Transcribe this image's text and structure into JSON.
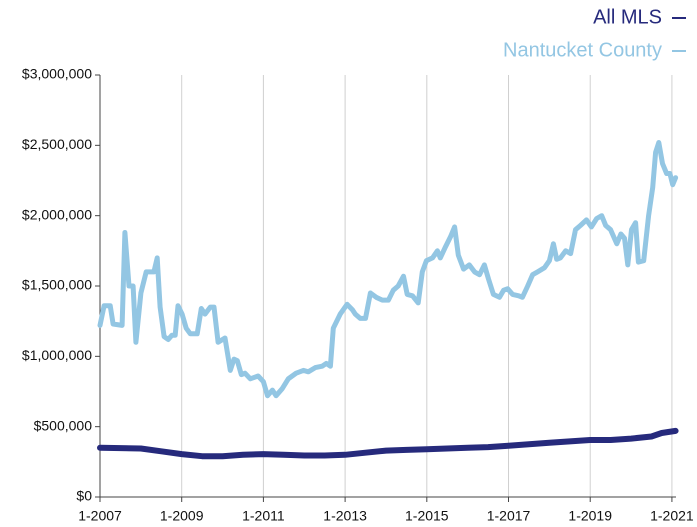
{
  "chart_data": {
    "type": "line",
    "legend": "top-right",
    "grid": "x",
    "xlim": [
      2007,
      2021.1
    ],
    "xticks": [
      {
        "value": 2007,
        "label": "1-2007"
      },
      {
        "value": 2009,
        "label": "1-2009"
      },
      {
        "value": 2011,
        "label": "1-2011"
      },
      {
        "value": 2013,
        "label": "1-2013"
      },
      {
        "value": 2015,
        "label": "1-2015"
      },
      {
        "value": 2017,
        "label": "1-2017"
      },
      {
        "value": 2019,
        "label": "1-2019"
      },
      {
        "value": 2021,
        "label": "1-2021"
      }
    ],
    "ylim": [
      0,
      3000000
    ],
    "yticks": [
      {
        "value": 0,
        "label": "$0"
      },
      {
        "value": 500000,
        "label": "$500,000"
      },
      {
        "value": 1000000,
        "label": "$1,000,000"
      },
      {
        "value": 1500000,
        "label": "$1,500,000"
      },
      {
        "value": 2000000,
        "label": "$2,000,000"
      },
      {
        "value": 2500000,
        "label": "$2,500,000"
      },
      {
        "value": 3000000,
        "label": "$3,000,000"
      }
    ],
    "series": [
      {
        "name": "All MLS",
        "color": "#262a7c",
        "x": [
          2007,
          2008,
          2008.5,
          2009,
          2009.5,
          2010,
          2010.5,
          2011,
          2011.5,
          2012,
          2012.5,
          2013,
          2013.5,
          2014,
          2014.5,
          2015,
          2015.5,
          2016,
          2016.5,
          2017,
          2017.5,
          2018,
          2018.5,
          2019,
          2019.5,
          2020,
          2020.5,
          2020.75,
          2021.09
        ],
        "values": [
          350000,
          345000,
          325000,
          305000,
          290000,
          290000,
          300000,
          305000,
          300000,
          295000,
          295000,
          300000,
          315000,
          330000,
          335000,
          340000,
          345000,
          350000,
          355000,
          365000,
          375000,
          385000,
          395000,
          405000,
          405000,
          415000,
          430000,
          455000,
          470000
        ]
      },
      {
        "name": "Nantucket County",
        "color": "#93c6e3",
        "x": [
          2007.0,
          2007.1,
          2007.25,
          2007.32,
          2007.54,
          2007.61,
          2007.71,
          2007.81,
          2007.88,
          2008.0,
          2008.13,
          2008.32,
          2008.4,
          2008.47,
          2008.57,
          2008.67,
          2008.76,
          2008.84,
          2008.91,
          2009.01,
          2009.11,
          2009.21,
          2009.38,
          2009.48,
          2009.57,
          2009.7,
          2009.79,
          2009.89,
          2010.06,
          2010.19,
          2010.28,
          2010.36,
          2010.46,
          2010.55,
          2010.68,
          2010.87,
          2011.0,
          2011.1,
          2011.22,
          2011.31,
          2011.46,
          2011.61,
          2011.8,
          2011.98,
          2012.1,
          2012.27,
          2012.44,
          2012.54,
          2012.64,
          2012.71,
          2012.88,
          2013.05,
          2013.18,
          2013.25,
          2013.37,
          2013.5,
          2013.62,
          2013.76,
          2013.91,
          2014.06,
          2014.18,
          2014.3,
          2014.43,
          2014.52,
          2014.65,
          2014.79,
          2014.89,
          2014.99,
          2015.14,
          2015.26,
          2015.33,
          2015.46,
          2015.58,
          2015.68,
          2015.77,
          2015.9,
          2016.04,
          2016.17,
          2016.29,
          2016.41,
          2016.51,
          2016.63,
          2016.78,
          2016.88,
          2016.98,
          2017.1,
          2017.25,
          2017.34,
          2017.47,
          2017.59,
          2017.71,
          2017.88,
          2018.0,
          2018.1,
          2018.18,
          2018.27,
          2018.4,
          2018.52,
          2018.64,
          2018.76,
          2018.91,
          2019.03,
          2019.16,
          2019.28,
          2019.38,
          2019.5,
          2019.65,
          2019.75,
          2019.84,
          2019.92,
          2020.01,
          2020.11,
          2020.18,
          2020.31,
          2020.43,
          2020.53,
          2020.6,
          2020.68,
          2020.77,
          2020.87,
          2020.95,
          2021.02,
          2021.09
        ],
        "values": [
          1220000,
          1360000,
          1360000,
          1230000,
          1220000,
          1880000,
          1500000,
          1500000,
          1100000,
          1450000,
          1600000,
          1600000,
          1700000,
          1350000,
          1140000,
          1120000,
          1150000,
          1150000,
          1360000,
          1300000,
          1200000,
          1160000,
          1160000,
          1340000,
          1300000,
          1350000,
          1350000,
          1100000,
          1130000,
          900000,
          980000,
          970000,
          870000,
          880000,
          840000,
          860000,
          820000,
          720000,
          760000,
          720000,
          770000,
          840000,
          880000,
          900000,
          890000,
          920000,
          930000,
          950000,
          930000,
          1200000,
          1300000,
          1370000,
          1330000,
          1300000,
          1270000,
          1270000,
          1450000,
          1420000,
          1400000,
          1400000,
          1470000,
          1500000,
          1570000,
          1440000,
          1430000,
          1380000,
          1600000,
          1680000,
          1700000,
          1750000,
          1700000,
          1780000,
          1850000,
          1920000,
          1720000,
          1620000,
          1650000,
          1600000,
          1580000,
          1650000,
          1550000,
          1440000,
          1420000,
          1470000,
          1480000,
          1440000,
          1430000,
          1420000,
          1500000,
          1580000,
          1600000,
          1630000,
          1680000,
          1800000,
          1690000,
          1700000,
          1750000,
          1730000,
          1900000,
          1930000,
          1970000,
          1920000,
          1980000,
          2000000,
          1930000,
          1900000,
          1800000,
          1870000,
          1840000,
          1650000,
          1900000,
          1950000,
          1670000,
          1680000,
          2000000,
          2200000,
          2450000,
          2520000,
          2370000,
          2300000,
          2300000,
          2220000,
          2270000
        ]
      }
    ]
  }
}
